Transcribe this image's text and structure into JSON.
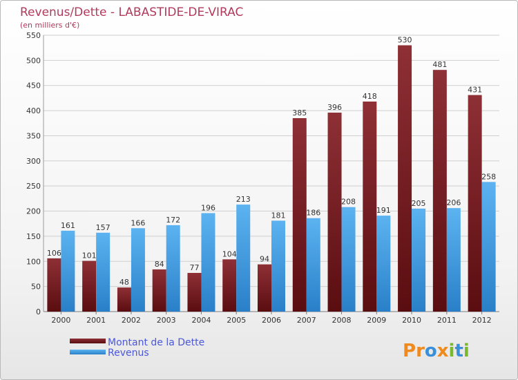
{
  "chart_data": {
    "type": "bar",
    "title": "Revenus/Dette - LABASTIDE-DE-VIRAC",
    "subtitle": "(en milliers d'€)",
    "xlabel": "",
    "ylabel": "",
    "ylim": [
      0,
      550
    ],
    "yticks": [
      0,
      50,
      100,
      150,
      200,
      250,
      300,
      350,
      400,
      450,
      500,
      550
    ],
    "grid": true,
    "legend_position": "bottom-left",
    "categories": [
      "2000",
      "2001",
      "2002",
      "2003",
      "2004",
      "2005",
      "2006",
      "2007",
      "2008",
      "2009",
      "2010",
      "2011",
      "2012"
    ],
    "series": [
      {
        "name": "Montant de la Dette",
        "color": "#7a1e22",
        "values": [
          106,
          101,
          48,
          84,
          77,
          104,
          94,
          385,
          396,
          418,
          530,
          481,
          431
        ]
      },
      {
        "name": "Revenus",
        "color": "#3d9be0",
        "values": [
          161,
          157,
          166,
          172,
          196,
          213,
          181,
          186,
          208,
          191,
          205,
          206,
          258
        ]
      }
    ]
  },
  "logo": {
    "text": "Proxiti",
    "letters": [
      "P",
      "r",
      "o",
      "x",
      "i",
      "t",
      "i"
    ],
    "colors": [
      "#f08a1c",
      "#f08a1c",
      "#3b8fd8",
      "#f08a1c",
      "#7ab82e",
      "#3b8fd8",
      "#7ab82e"
    ]
  }
}
